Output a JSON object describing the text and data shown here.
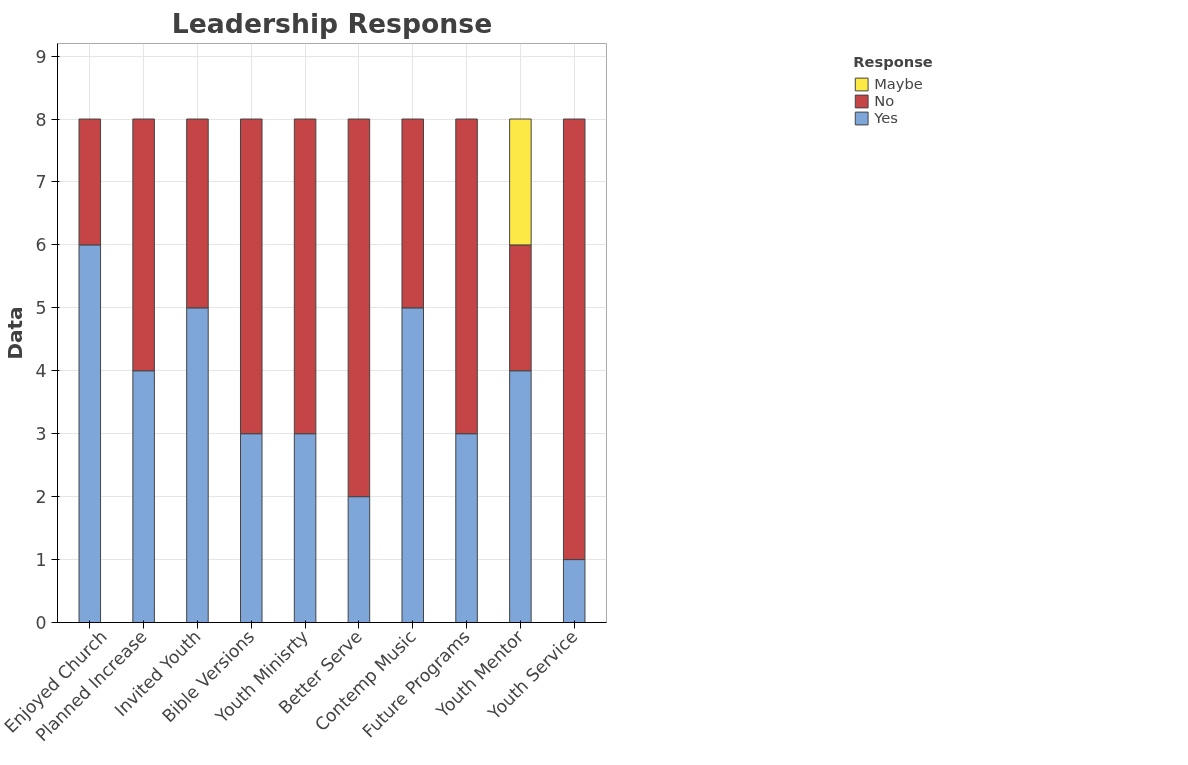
{
  "chart_data": {
    "type": "bar",
    "title": "Leadership Response",
    "ylabel": "Data",
    "legend_title": "Response",
    "stacked": true,
    "grid": true,
    "legend": "top right",
    "categories": [
      "Enjoyed Church",
      "Planned Increase",
      "Invited Youth",
      "Bible Versions",
      "Youth Minisrty",
      "Better Serve",
      "Contemp Music",
      "Future Programs",
      "Youth Mentor",
      "Youth Service"
    ],
    "ylim": [
      0,
      9.2
    ],
    "yticks": [
      0,
      1,
      2,
      3,
      4,
      5,
      6,
      7,
      8,
      9
    ],
    "series": [
      {
        "name": "Yes",
        "color": "#7ea6d8",
        "values": [
          6,
          4,
          5,
          3,
          3,
          2,
          5,
          3,
          4,
          1
        ]
      },
      {
        "name": "No",
        "color": "#c54446",
        "values": [
          2,
          4,
          3,
          5,
          5,
          6,
          3,
          5,
          2,
          7
        ]
      },
      {
        "name": "Maybe",
        "color": "#fde945",
        "values": [
          null,
          null,
          null,
          null,
          null,
          null,
          null,
          null,
          2,
          null
        ]
      }
    ]
  }
}
